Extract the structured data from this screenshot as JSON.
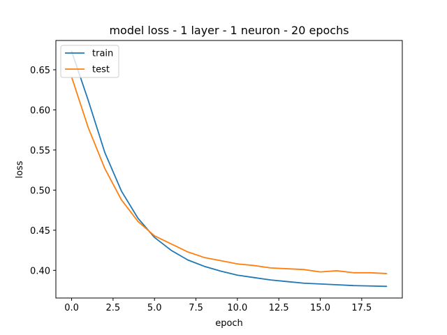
{
  "chart_data": {
    "type": "line",
    "title": "model loss - 1 layer - 1 neuron - 20 epochs",
    "xlabel": "epoch",
    "ylabel": "loss",
    "xlim": [
      -0.95,
      19.95
    ],
    "ylim": [
      0.3655,
      0.6865
    ],
    "x_ticks": [
      0.0,
      2.5,
      5.0,
      7.5,
      10.0,
      12.5,
      15.0,
      17.5
    ],
    "x_tick_labels": [
      "0.0",
      "2.5",
      "5.0",
      "7.5",
      "10.0",
      "12.5",
      "15.0",
      "17.5"
    ],
    "y_ticks": [
      0.4,
      0.45,
      0.5,
      0.55,
      0.6,
      0.65
    ],
    "y_tick_labels": [
      "0.40",
      "0.45",
      "0.50",
      "0.55",
      "0.60",
      "0.65"
    ],
    "grid": false,
    "legend_position": "upper left",
    "x": [
      0,
      1,
      2,
      3,
      4,
      5,
      6,
      7,
      8,
      9,
      10,
      11,
      12,
      13,
      14,
      15,
      16,
      17,
      18,
      19
    ],
    "series": [
      {
        "name": "train",
        "color": "#1f77b4",
        "values": [
          0.673,
          0.612,
          0.547,
          0.499,
          0.465,
          0.441,
          0.425,
          0.413,
          0.405,
          0.399,
          0.394,
          0.391,
          0.388,
          0.386,
          0.384,
          0.383,
          0.382,
          0.381,
          0.3805,
          0.38
        ]
      },
      {
        "name": "test",
        "color": "#ff7f0e",
        "values": [
          0.641,
          0.578,
          0.527,
          0.488,
          0.461,
          0.443,
          0.433,
          0.423,
          0.416,
          0.412,
          0.408,
          0.406,
          0.403,
          0.402,
          0.401,
          0.398,
          0.3995,
          0.397,
          0.397,
          0.396
        ]
      }
    ]
  }
}
